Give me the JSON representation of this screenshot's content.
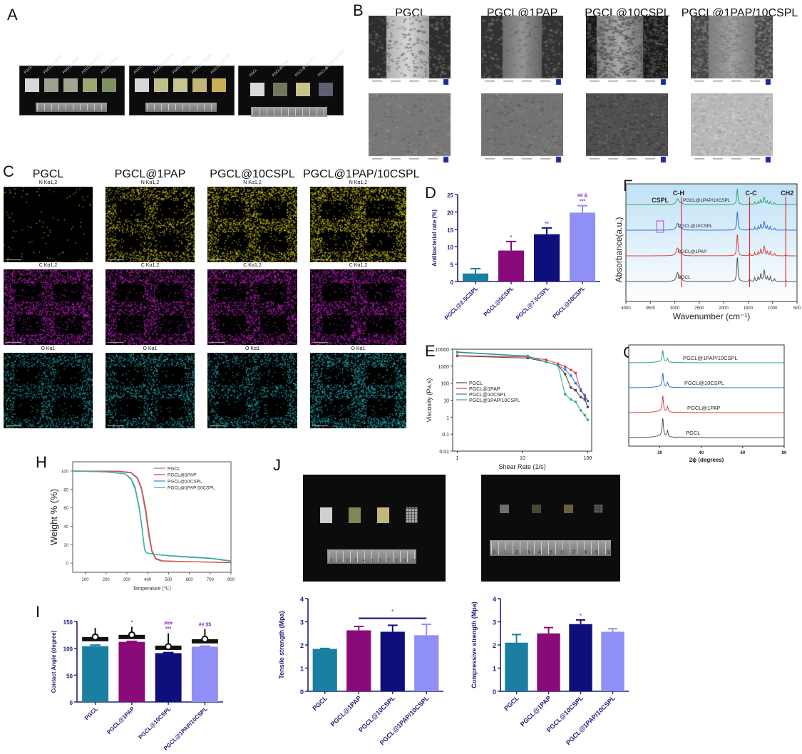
{
  "panels": {
    "A": "A",
    "B": "B",
    "C": "C",
    "D": "D",
    "E": "E",
    "F": "F",
    "G": "G",
    "H": "H",
    "I": "I",
    "J": "J"
  },
  "panel_a": {
    "groups": [
      {
        "samples": [
          "PGCL",
          "PGCL@0.5PAP",
          "PGCL@1PAP",
          "PGCL@1.5PAP",
          "PGCL@2PAP"
        ],
        "colors": [
          "#d8d8d8",
          "#9ea090",
          "#a3a68f",
          "#9fa66e",
          "#7f9160"
        ]
      },
      {
        "samples": [
          "PGCL",
          "PGCL@2.5CSPL",
          "PGCL@5CSPL",
          "PGCL@7.5CSPL",
          "PGCL@10CSPL"
        ],
        "colors": [
          "#d6d8d8",
          "#c2c08a",
          "#c8c48f",
          "#c3b677",
          "#c9ad57"
        ]
      },
      {
        "samples": [
          "PGCL",
          "PGCL@1PAP",
          "PGCL@10CSPL",
          "PGCL@1PAP/10CSPL"
        ],
        "colors": [
          "#d9d9d9",
          "#72785f",
          "#c9c08a",
          "#5d6070"
        ]
      }
    ]
  },
  "panel_b": {
    "titles": [
      "PGCL",
      "PGCL@1PAP",
      "PGCL@10CSPL",
      "PGCL@1PAP/10CSPL"
    ]
  },
  "panel_c": {
    "titles": [
      "PGCL",
      "PGCL@1PAP",
      "PGCL@10CSPL",
      "PGCL@1PAP/10CSPL"
    ],
    "elements": [
      "N Kα1,2",
      "C Kα1,2",
      "O Kα1"
    ],
    "colors": [
      "#d8cf1c",
      "#c21fc4",
      "#22bcc4"
    ]
  },
  "panel_j": {
    "photo_samples": [
      "PGCL",
      "PGCL@1PAP",
      "PGCL@10CSPL",
      "PGCL@1PAP/10CSPL"
    ],
    "ruler_ticks": [
      "0",
      "1",
      "2",
      "3",
      "4",
      "5",
      "6",
      "7",
      "8",
      "9",
      "10"
    ]
  },
  "chart_data": [
    {
      "id": "D",
      "type": "bar",
      "categories": [
        "PGCL@2.5CSPL",
        "PGCL@5CSPL",
        "PGCL@7.5CSPL",
        "PGCL@10CSPL"
      ],
      "values": [
        2.3,
        8.9,
        13.6,
        19.8
      ],
      "errors": [
        1.4,
        2.6,
        1.8,
        2.0
      ],
      "annotations": [
        "",
        "*",
        "**",
        "## &\n***"
      ],
      "ylabel": "Antibacterial rate (%)",
      "ylim": [
        0,
        25
      ],
      "yticks": [
        0,
        5,
        10,
        15,
        20,
        25
      ],
      "colors": [
        "#1a7fa0",
        "#8b0a7a",
        "#0f0f7c",
        "#8f8ff5"
      ]
    },
    {
      "id": "E",
      "type": "line",
      "scale": "log-log",
      "xlabel": "Shear Rate (1/s)",
      "ylabel": "Viscosity (Pa.s)",
      "xlim": [
        0.85,
        115
      ],
      "ylim": [
        0.01,
        10000
      ],
      "xticks": [
        1,
        10,
        100
      ],
      "yticks": [
        0.01,
        0.1,
        1,
        10,
        100,
        1000,
        10000
      ],
      "x": [
        1,
        12,
        23,
        35,
        45,
        55,
        65,
        78,
        90,
        100
      ],
      "legend": "center-left",
      "series": [
        {
          "name": "PGCL",
          "color": "#444444",
          "marker": "square",
          "values": [
            4000,
            3000,
            1800,
            1100,
            350,
            55,
            38,
            15,
            11,
            4
          ]
        },
        {
          "name": "PGCL@1PAP",
          "color": "#e03a3a",
          "marker": "circle",
          "values": [
            4200,
            3500,
            2400,
            1400,
            950,
            600,
            400,
            35,
            20,
            9
          ]
        },
        {
          "name": "PGCL@10CSPL",
          "color": "#2f6fd8",
          "marker": "triangle",
          "values": [
            6500,
            3800,
            1800,
            1100,
            650,
            280,
            100,
            45,
            16,
            9
          ]
        },
        {
          "name": "PGCL@1PAP/10CSPL",
          "color": "#2aa880",
          "marker": "triangle-down",
          "values": [
            7000,
            4000,
            1800,
            1100,
            22,
            11,
            8,
            2.5,
            1.3,
            0.7
          ]
        }
      ]
    },
    {
      "id": "F",
      "type": "line",
      "subtype": "spectrum",
      "xlabel": "Wavenumber (cm⁻¹)",
      "ylabel": "Absorbance(a.u.)",
      "xlim": [
        4000,
        500
      ],
      "xticks": [
        4000,
        3500,
        3000,
        2500,
        2000,
        1500,
        1000,
        500
      ],
      "peaks": [
        [
          2945,
          0.35,
          30
        ],
        [
          2865,
          0.15,
          15
        ],
        [
          1720,
          1.0,
          14
        ],
        [
          1470,
          0.12,
          10
        ],
        [
          1365,
          0.15,
          10
        ],
        [
          1295,
          0.18,
          10
        ],
        [
          1240,
          0.3,
          12
        ],
        [
          1170,
          0.45,
          15
        ],
        [
          1105,
          0.2,
          10
        ],
        [
          1045,
          0.2,
          10
        ],
        [
          960,
          0.12,
          10
        ],
        [
          730,
          0.05,
          8
        ]
      ],
      "series": [
        {
          "name": "PGCL",
          "color": "#555555"
        },
        {
          "name": "PGCL@1PAP",
          "color": "#e04040"
        },
        {
          "name": "PGCL@10CSPL",
          "color": "#2f6fd8"
        },
        {
          "name": "PGCL@1PAP/10CSPL",
          "color": "#2aa870"
        }
      ],
      "annotations": [
        {
          "text": "CSPL",
          "x": 3290
        },
        {
          "text": "C-H",
          "x": 2865
        },
        {
          "text": "C-C",
          "x": 1470
        },
        {
          "text": "CH2",
          "x": 730
        }
      ]
    },
    {
      "id": "G",
      "type": "line",
      "subtype": "spectrum",
      "xlabel": "2ϕ (degrees)",
      "xlim": [
        5,
        80
      ],
      "xticks": [
        20,
        40,
        60,
        80
      ],
      "peaks": [
        [
          21.4,
          1.0,
          0.35
        ],
        [
          23.7,
          0.35,
          0.35
        ],
        [
          20,
          0.08,
          3
        ],
        [
          30,
          0.02,
          1
        ]
      ],
      "series": [
        {
          "name": "PGCL",
          "color": "#555555"
        },
        {
          "name": "PGCL@1PAP",
          "color": "#e04040"
        },
        {
          "name": "PGCL@10CSPL",
          "color": "#2f6fd8"
        },
        {
          "name": "PGCL@1PAP/10CSPL",
          "color": "#2aa870"
        }
      ]
    },
    {
      "id": "H",
      "type": "line",
      "xlabel": "Temperature (℃)",
      "ylabel": "Weight % (%)",
      "xlim": [
        40,
        800
      ],
      "ylim": [
        -10,
        110
      ],
      "xticks": [
        100,
        200,
        300,
        400,
        500,
        600,
        700,
        800
      ],
      "yticks": [
        0,
        20,
        40,
        60,
        80,
        100
      ],
      "legend": "top-right",
      "series": [
        {
          "name": "PGCL",
          "color": "#888888",
          "points": [
            [
              40,
              100
            ],
            [
              250,
              99.5
            ],
            [
              320,
              98
            ],
            [
              350,
              92
            ],
            [
              370,
              80
            ],
            [
              390,
              55
            ],
            [
              405,
              30
            ],
            [
              420,
              12
            ],
            [
              440,
              4
            ],
            [
              470,
              2
            ],
            [
              600,
              1.5
            ],
            [
              800,
              0.5
            ]
          ]
        },
        {
          "name": "PGCL@1PAP",
          "color": "#e04848",
          "points": [
            [
              40,
              100
            ],
            [
              260,
              99.8
            ],
            [
              320,
              98.5
            ],
            [
              350,
              93
            ],
            [
              370,
              82
            ],
            [
              390,
              60
            ],
            [
              405,
              35
            ],
            [
              420,
              14
            ],
            [
              440,
              5
            ],
            [
              470,
              2.5
            ],
            [
              600,
              1.5
            ],
            [
              800,
              0.5
            ]
          ]
        },
        {
          "name": "PGCL@10CSPL",
          "color": "#3a8fc0",
          "points": [
            [
              40,
              100
            ],
            [
              200,
              99
            ],
            [
              290,
              97
            ],
            [
              320,
              92
            ],
            [
              340,
              82
            ],
            [
              360,
              60
            ],
            [
              375,
              35
            ],
            [
              385,
              15
            ],
            [
              395,
              11
            ],
            [
              450,
              9
            ],
            [
              550,
              7
            ],
            [
              700,
              5
            ],
            [
              800,
              2
            ]
          ]
        },
        {
          "name": "PGCL@1PAP/10CSPL",
          "color": "#3ab89a",
          "points": [
            [
              40,
              100
            ],
            [
              200,
              99
            ],
            [
              290,
              97
            ],
            [
              320,
              91
            ],
            [
              340,
              80
            ],
            [
              360,
              58
            ],
            [
              375,
              33
            ],
            [
              385,
              14
            ],
            [
              395,
              11
            ],
            [
              450,
              9
            ],
            [
              550,
              7.5
            ],
            [
              700,
              5.5
            ],
            [
              800,
              2.5
            ]
          ]
        }
      ]
    },
    {
      "id": "I",
      "type": "bar",
      "categories": [
        "PGCL",
        "PGCL@1PAP",
        "PGCL@10CSPL",
        "PGCL@1PAP/10CSPL"
      ],
      "values": [
        104,
        112,
        91,
        103
      ],
      "errors": [
        2,
        1,
        1,
        1
      ],
      "box_values": [
        117,
        121,
        101,
        113
      ],
      "circle_values": [
        121,
        125,
        103,
        117
      ],
      "whisker_top": [
        138,
        140,
        128,
        136
      ],
      "annotations": [
        "",
        "*",
        "###\n***",
        "## $$"
      ],
      "ylabel": "Contact Angle (degree)",
      "ylim": [
        0,
        150
      ],
      "yticks": [
        0,
        50,
        100,
        150
      ],
      "colors": [
        "#1a7fa0",
        "#8b0a7a",
        "#0f0f7c",
        "#8f8ff5"
      ]
    },
    {
      "id": "J1",
      "type": "bar",
      "categories": [
        "PGCL",
        "PGCL@1PAP",
        "PGCL@10CSPL",
        "PGCL@1PAP/10CSPL"
      ],
      "values": [
        1.83,
        2.63,
        2.57,
        2.42
      ],
      "errors": [
        0.02,
        0.17,
        0.28,
        0.47
      ],
      "significance": {
        "from": 1,
        "to": 3,
        "y": 3.15,
        "label": "*"
      },
      "annotations": [
        "",
        "",
        "",
        ""
      ],
      "ylabel": "Tensile strength (Mpa)",
      "ylim": [
        0,
        4
      ],
      "yticks": [
        0,
        1,
        2,
        3,
        4
      ],
      "colors": [
        "#1a7fa0",
        "#8b0a7a",
        "#0f0f7c",
        "#8f8ff5"
      ]
    },
    {
      "id": "J2",
      "type": "bar",
      "categories": [
        "PGCL",
        "PGCL@1PAP",
        "PGCL@10CSPL",
        "PGCL@1PAP/10CSPL"
      ],
      "values": [
        2.1,
        2.5,
        2.9,
        2.57
      ],
      "errors": [
        0.35,
        0.25,
        0.18,
        0.13
      ],
      "annotations": [
        "",
        "",
        "*",
        ""
      ],
      "ylabel": "Compressive strength (Mpa)",
      "ylim": [
        0,
        4
      ],
      "yticks": [
        0,
        1,
        2,
        3,
        4
      ],
      "colors": [
        "#1a7fa0",
        "#8b0a7a",
        "#0f0f7c",
        "#8f8ff5"
      ]
    }
  ]
}
